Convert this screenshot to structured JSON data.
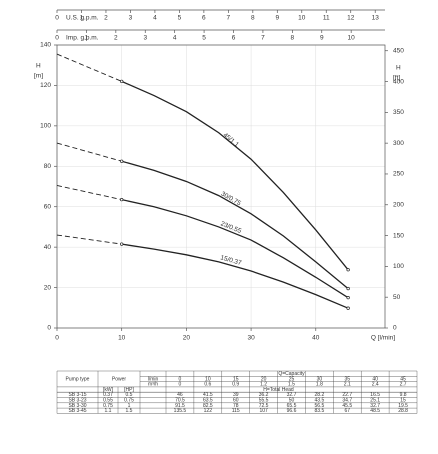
{
  "chart_data": {
    "type": "line",
    "x": [
      0,
      10,
      15,
      20,
      25,
      30,
      35,
      40,
      45
    ],
    "xlim": [
      0,
      50.7
    ],
    "xticks": [
      0,
      10,
      20,
      30,
      40
    ],
    "xlabel": "Q [l/min]",
    "ylim": [
      0,
      140
    ],
    "yticks": [
      0,
      20,
      40,
      60,
      80,
      100,
      120,
      140
    ],
    "ylabel": "H",
    "yunit": "[m]",
    "y2lim": [
      0,
      459.3
    ],
    "y2ticks": [
      0,
      50,
      100,
      150,
      200,
      250,
      300,
      350,
      400,
      450
    ],
    "y2label": "H",
    "y2unit": "[ft]",
    "top_axes": [
      {
        "label": "U.S. g.p.m.",
        "xlim": [
          0,
          13.4
        ],
        "xticks": [
          0,
          1,
          2,
          3,
          4,
          5,
          6,
          7,
          8,
          9,
          10,
          11,
          12,
          13
        ]
      },
      {
        "label": "Imp. g.p.m.",
        "xlim": [
          0,
          11.15
        ],
        "xticks": [
          0,
          1,
          2,
          3,
          4,
          5,
          6,
          7,
          8,
          9,
          10
        ]
      }
    ],
    "grid": true,
    "color": "#222222",
    "series": [
      {
        "name": "15/0.37",
        "values": [
          46,
          41.5,
          39,
          36.2,
          32.7,
          28.2,
          22.7,
          16.5,
          9.8
        ]
      },
      {
        "name": "23/0.55",
        "values": [
          70.5,
          63.5,
          60,
          55.5,
          50,
          43.5,
          34.7,
          25.1,
          15
        ]
      },
      {
        "name": "30/0.75",
        "values": [
          91.5,
          82.5,
          78,
          72.5,
          65.5,
          56.5,
          45.5,
          32.7,
          19.5
        ]
      },
      {
        "name": "45/1.1",
        "values": [
          135.5,
          122,
          115,
          107,
          96.6,
          83.5,
          67,
          48.5,
          28.8
        ]
      }
    ]
  },
  "table": {
    "pump_type": "Pump type",
    "power": "Power",
    "kw": "[kW]",
    "hp": "[HP]",
    "capacity": "Q=Capacity",
    "lmin": "l/min",
    "m3h": "m³/h",
    "head": "H=Total Head",
    "m3h_values": [
      0,
      0.6,
      0.9,
      1.2,
      1.5,
      1.8,
      2.1,
      2.4,
      2.7
    ],
    "rows": [
      [
        "SB 3-15",
        0.37,
        0.5
      ],
      [
        "SB 3-23",
        0.55,
        0.75
      ],
      [
        "SB 3-30",
        0.75,
        1
      ],
      [
        "SB 3-45",
        1.1,
        1.5
      ]
    ]
  }
}
